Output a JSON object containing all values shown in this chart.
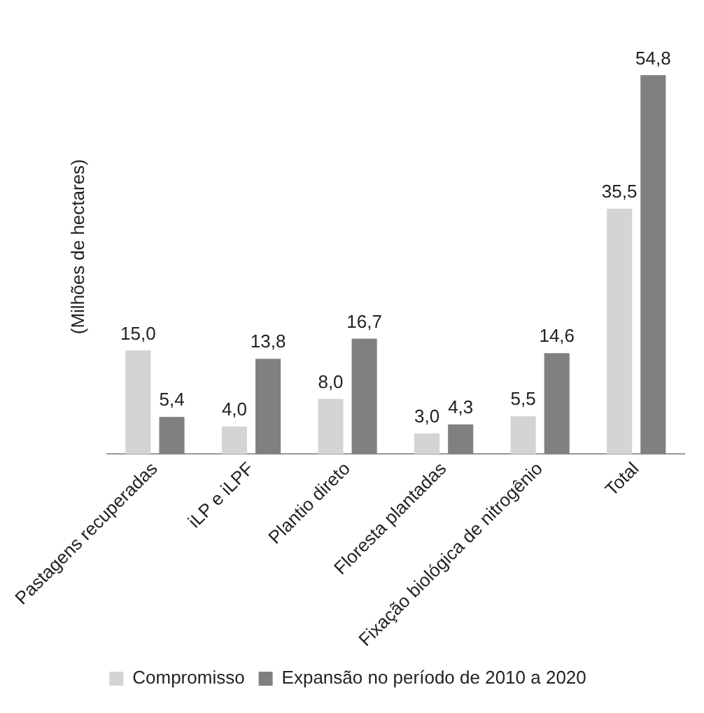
{
  "chart_data": {
    "type": "bar",
    "ylabel": "(Milhões de hectares)",
    "categories": [
      "Pastagens recuperadas",
      "iLP e iLPF",
      "Plantio direto",
      "Floresta plantadas",
      "Fixação biológica de nitrogênio",
      "Total"
    ],
    "series": [
      {
        "name": "Compromisso",
        "color": "#d4d4d4",
        "values": [
          15.0,
          4.0,
          8.0,
          3.0,
          5.5,
          35.5
        ],
        "value_labels": [
          "15,0",
          "4,0",
          "8,0",
          "3,0",
          "5,5",
          "35,5"
        ]
      },
      {
        "name": "Expansão no período de 2010 a 2020",
        "color": "#808080",
        "values": [
          5.4,
          13.8,
          16.7,
          4.3,
          14.6,
          54.8
        ],
        "value_labels": [
          "5,4",
          "13,8",
          "16,7",
          "4,3",
          "14,6",
          "54,8"
        ]
      }
    ],
    "legend": "bottom",
    "grid": false
  }
}
